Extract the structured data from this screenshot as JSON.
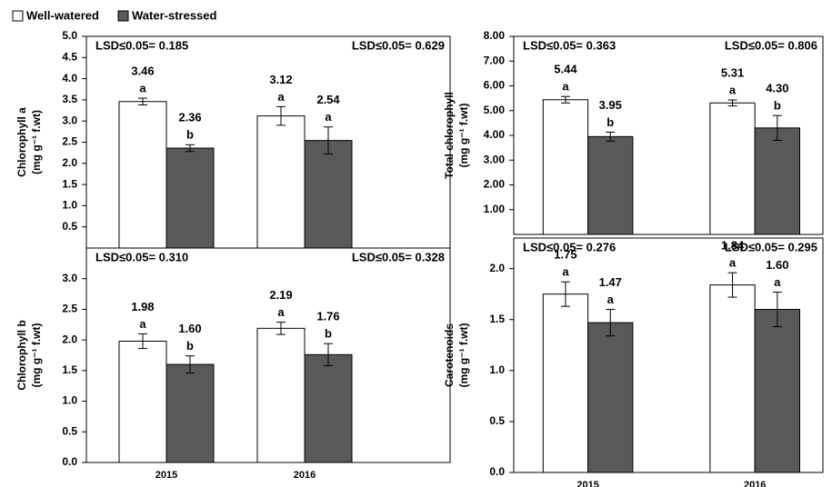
{
  "chart_data": [
    {
      "type": "bar",
      "ylabel": [
        "Chlorophyll a",
        "(mg g⁻¹ f.wt)"
      ],
      "ylim": [
        0,
        5.0
      ],
      "yticks": [
        0.5,
        {
          "value": 1.0,
          "label": "1.0"
        },
        1.5,
        {
          "value": 2.0,
          "label": "2.0"
        },
        2.5,
        {
          "value": 3.0,
          "label": "3.0"
        },
        3.5,
        {
          "value": 4.0,
          "label": "4.0"
        },
        4.5,
        {
          "value": 5.0,
          "label": "5.0"
        }
      ],
      "annotations": [
        "LSD≤0.05= 0.185",
        "LSD≤0.05= 0.629"
      ],
      "series": [
        {
          "name": "Well-watered",
          "color": "#ffffff",
          "values": [
            3.46,
            3.12
          ],
          "errors": [
            0.08,
            0.22
          ],
          "letters": [
            "a",
            "a"
          ]
        },
        {
          "name": "Water-stressed",
          "color": "#595959",
          "values": [
            2.36,
            2.54
          ],
          "errors": [
            0.08,
            0.32
          ],
          "letters": [
            "b",
            "a"
          ]
        }
      ]
    },
    {
      "type": "bar",
      "ylabel": [
        "Chlorophyll b",
        "(mg g⁻¹ f.wt)"
      ],
      "ylim": [
        0,
        3.5
      ],
      "categories": [
        "2015",
        "2016"
      ],
      "yticks": [
        {
          "value": 0.0,
          "label": "0.0"
        },
        0.5,
        {
          "value": 1.0,
          "label": "1.0"
        },
        1.5,
        {
          "value": 2.0,
          "label": "2.0"
        },
        2.5,
        {
          "value": 3.0,
          "label": "3.0"
        }
      ],
      "annotations": [
        "LSD≤0.05= 0.310",
        "LSD≤0.05= 0.328"
      ],
      "series": [
        {
          "color": "#ffffff",
          "values": [
            1.98,
            2.19
          ],
          "errors": [
            0.12,
            0.1
          ],
          "letters": [
            "a",
            "a"
          ]
        },
        {
          "color": "#595959",
          "values": [
            1.6,
            1.76
          ],
          "value_labels": [
            "1.60",
            "1.76"
          ],
          "errors": [
            0.14,
            0.18
          ],
          "letters": [
            "b",
            "b"
          ]
        }
      ]
    },
    {
      "type": "bar",
      "ylabel": [
        "Total chlorophyll",
        "(mg g⁻¹ f.wt)"
      ],
      "ylim": [
        0,
        8.0
      ],
      "yticks": [
        {
          "value": 1,
          "label": "1.00"
        },
        {
          "value": 2,
          "label": "2.00"
        },
        {
          "value": 3,
          "label": "3.00"
        },
        {
          "value": 4,
          "label": "4.00"
        },
        {
          "value": 5,
          "label": "5.00"
        },
        {
          "value": 6,
          "label": "6.00"
        },
        {
          "value": 7,
          "label": "7.00"
        },
        {
          "value": 8,
          "label": "8.00"
        }
      ],
      "annotations": [
        "LSD≤0.05= 0.363",
        "LSD≤0.05= 0.806"
      ],
      "series": [
        {
          "color": "#ffffff",
          "values": [
            5.44,
            5.31
          ],
          "errors": [
            0.13,
            0.12
          ],
          "letters": [
            "a",
            "a"
          ]
        },
        {
          "color": "#595959",
          "values": [
            3.95,
            4.3
          ],
          "value_labels": [
            "3.95",
            "4.30"
          ],
          "errors": [
            0.18,
            0.5
          ],
          "letters": [
            "b",
            "b"
          ]
        }
      ]
    },
    {
      "type": "bar",
      "ylabel": [
        "Carotenoids",
        "(mg g⁻¹ f.wt)"
      ],
      "ylim": [
        0,
        2.3
      ],
      "categories": [
        "2015",
        "2016"
      ],
      "yticks": [
        {
          "value": 0.0,
          "label": "0.0"
        },
        0.5,
        {
          "value": 1.0,
          "label": "1.0"
        },
        1.5,
        {
          "value": 2.0,
          "label": "2.0"
        }
      ],
      "annotations": [
        "LSD≤0.05= 0.276",
        "LSD≤0.05= 0.295"
      ],
      "series": [
        {
          "color": "#ffffff",
          "values": [
            1.75,
            1.84
          ],
          "errors": [
            0.12,
            0.12
          ],
          "letters": [
            "a",
            "a"
          ]
        },
        {
          "color": "#595959",
          "values": [
            1.47,
            1.6
          ],
          "value_labels": [
            "1.47",
            "1.60"
          ],
          "errors": [
            0.13,
            0.17
          ],
          "letters": [
            "a",
            "a"
          ]
        }
      ]
    }
  ]
}
